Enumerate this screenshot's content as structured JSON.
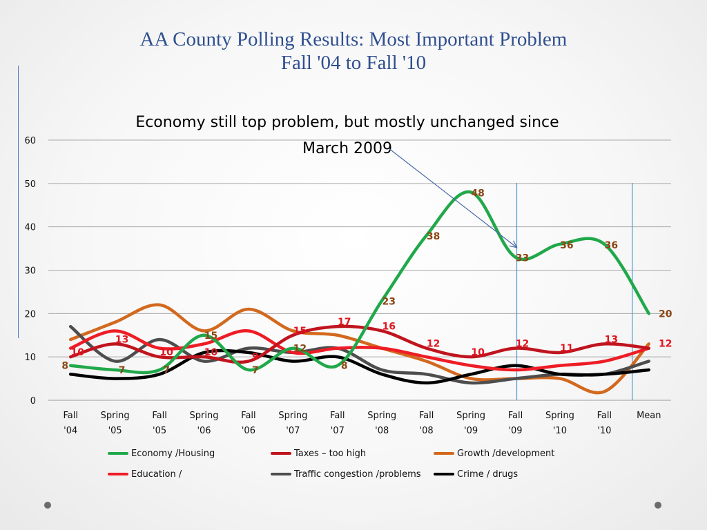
{
  "slide": {
    "title_line1": "AA County Polling Results: Most Important Problem",
    "title_line2": "Fall '04 to Fall '10"
  },
  "chart_data": {
    "type": "line",
    "title": "Economy still top problem, but mostly unchanged since March 2009",
    "categories": [
      "Fall '04",
      "Spring '05",
      "Fall '05",
      "Spring '06",
      "Fall '06",
      "Spring '07",
      "Fall '07",
      "Spring '08",
      "Fall '08",
      "Spring '09",
      "Fall '09",
      "Spring '10",
      "Fall '10",
      "Mean"
    ],
    "ylim": [
      0,
      60
    ],
    "yticks": [
      0,
      10,
      20,
      30,
      40,
      50,
      60
    ],
    "grid": true,
    "legend_position": "bottom",
    "series": [
      {
        "name": "Economy /Housing",
        "color": "#21a84a",
        "values": [
          8,
          7,
          7,
          15,
          7,
          12,
          8,
          23,
          38,
          48,
          33,
          36,
          36,
          20
        ],
        "labels": [
          "8",
          "7",
          "7",
          "15",
          "7",
          "12",
          "8",
          "23",
          "38",
          "48",
          "33",
          "36",
          "36",
          "20"
        ]
      },
      {
        "name": "Taxes – too high",
        "color": "#c0141e",
        "values": [
          10,
          13,
          10,
          10,
          9,
          15,
          17,
          16,
          12,
          10,
          12,
          11,
          13,
          12
        ],
        "labels": [
          "10",
          "13",
          "10",
          "10",
          "9",
          "15",
          "17",
          "16",
          "12",
          "10",
          "12",
          "11",
          "13",
          "12"
        ]
      },
      {
        "name": "Growth /development",
        "color": "#d2691e",
        "values": [
          14,
          18,
          22,
          16,
          21,
          16,
          15,
          12,
          9,
          5,
          5,
          5,
          2,
          13
        ],
        "labels": []
      },
      {
        "name": "Education /",
        "color": "#ee1c25",
        "values": [
          12,
          16,
          12,
          13,
          16,
          11,
          12,
          12,
          10,
          8,
          7,
          8,
          9,
          12
        ],
        "labels": []
      },
      {
        "name": "Traffic congestion /problems",
        "color": "#4d4d4d",
        "values": [
          17,
          9,
          14,
          9,
          12,
          11,
          12,
          7,
          6,
          4,
          5,
          6,
          6,
          9
        ],
        "labels": []
      },
      {
        "name": "Crime / drugs",
        "color": "#000000",
        "values": [
          6,
          5,
          6,
          11,
          11,
          9,
          10,
          6,
          4,
          6,
          8,
          6,
          6,
          7
        ],
        "labels": []
      }
    ],
    "annotations": [
      {
        "type": "arrow",
        "from": "title",
        "to_category": "Fall '09"
      }
    ],
    "vertical_markers": [
      "Fall '09",
      "Mean"
    ]
  }
}
